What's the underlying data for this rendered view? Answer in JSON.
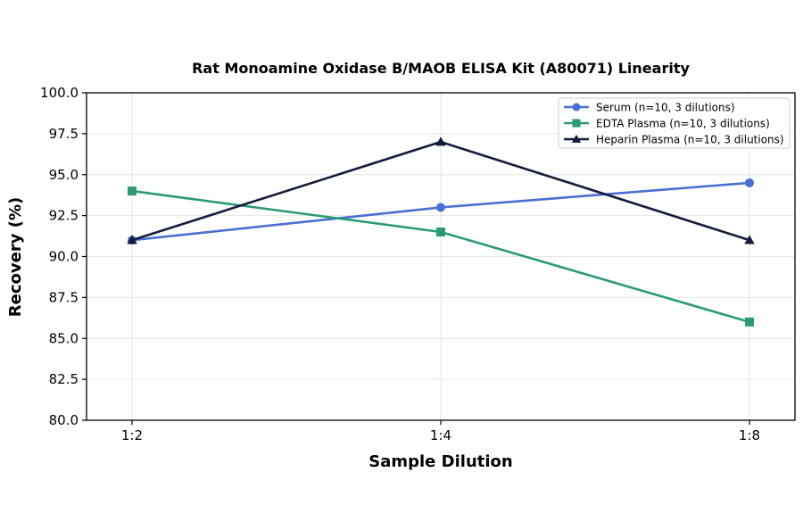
{
  "chart_data": {
    "type": "line",
    "title": "Rat Monoamine Oxidase B/MAOB ELISA Kit (A80071) Linearity",
    "xlabel": "Sample Dilution",
    "ylabel": "Recovery (%)",
    "categories": [
      "1:2",
      "1:4",
      "1:8"
    ],
    "ylim": [
      80.0,
      100.0
    ],
    "yticks": [
      "80.0",
      "82.5",
      "85.0",
      "87.5",
      "90.0",
      "92.5",
      "95.0",
      "97.5",
      "100.0"
    ],
    "grid": true,
    "legend_position": "top-right",
    "series": [
      {
        "name": "Serum (n=10, 3 dilutions)",
        "values": [
          91.0,
          93.0,
          94.5
        ],
        "color": "#4a6fd4",
        "marker": "circle"
      },
      {
        "name": "EDTA Plasma (n=10, 3 dilutions)",
        "values": [
          94.0,
          91.5,
          86.0
        ],
        "color": "#2a9a77",
        "marker": "square"
      },
      {
        "name": "Heparin Plasma (n=10, 3 dilutions)",
        "values": [
          91.0,
          97.0,
          91.0
        ],
        "color": "#141c3d",
        "marker": "triangle"
      }
    ]
  }
}
